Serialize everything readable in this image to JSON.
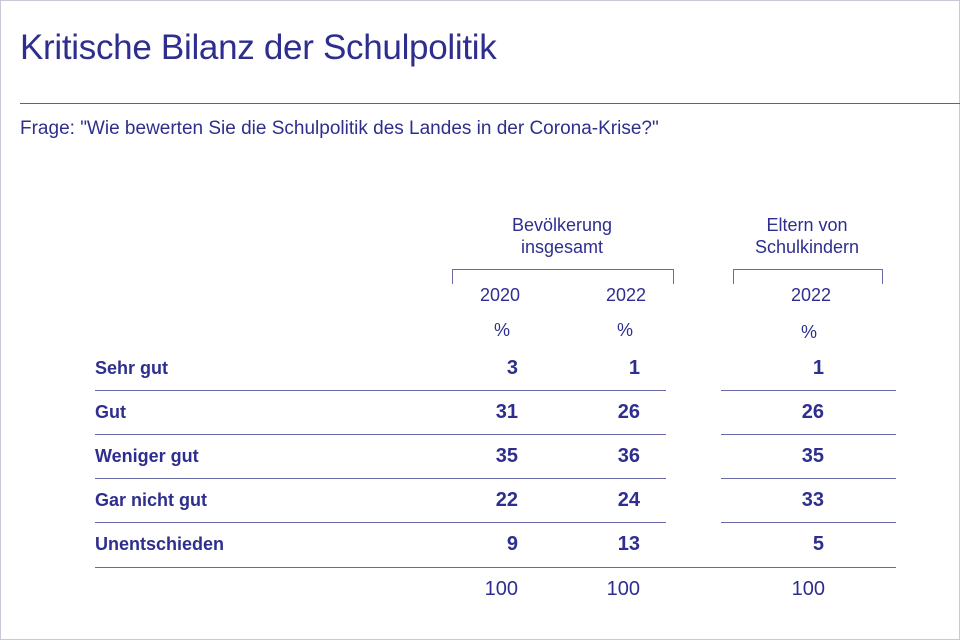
{
  "title": "Kritische Bilanz der Schulpolitik",
  "question": "Frage: \"Wie bewerten Sie die Schulpolitik des Landes in der Corona-Krise?\"",
  "groups": [
    {
      "line1": "Bevölkerung",
      "line2": "insgesamt"
    },
    {
      "line1": "Eltern von",
      "line2": "Schulkindern"
    }
  ],
  "columns": [
    {
      "year": "2020",
      "unit": "%"
    },
    {
      "year": "2022",
      "unit": "%"
    },
    {
      "year": "2022",
      "unit": "%"
    }
  ],
  "rows": [
    {
      "label": "Sehr gut",
      "values": [
        "3",
        "1",
        "1"
      ]
    },
    {
      "label": "Gut",
      "values": [
        "31",
        "26",
        "26"
      ]
    },
    {
      "label": "Weniger gut",
      "values": [
        "35",
        "36",
        "35"
      ]
    },
    {
      "label": "Gar nicht gut",
      "values": [
        "22",
        "24",
        "33"
      ]
    },
    {
      "label": "Unentschieden",
      "values": [
        "9",
        "13",
        "5"
      ]
    }
  ],
  "totals": [
    "100",
    "100",
    "100"
  ],
  "colors": {
    "text": "#2e2e8e",
    "rule": "#6a6aa8"
  },
  "chart_data": {
    "type": "table",
    "title": "Kritische Bilanz der Schulpolitik",
    "subtitle": "Frage: \"Wie bewerten Sie die Schulpolitik des Landes in der Corona-Krise?\"",
    "categories": [
      "Sehr gut",
      "Gut",
      "Weniger gut",
      "Gar nicht gut",
      "Unentschieden"
    ],
    "series": [
      {
        "name": "Bevölkerung insgesamt 2020",
        "values": [
          3,
          31,
          35,
          22,
          9
        ],
        "total": 100
      },
      {
        "name": "Bevölkerung insgesamt 2022",
        "values": [
          1,
          26,
          36,
          24,
          13
        ],
        "total": 100
      },
      {
        "name": "Eltern von Schulkindern 2022",
        "values": [
          1,
          26,
          35,
          33,
          5
        ],
        "total": 100
      }
    ],
    "unit": "%"
  }
}
